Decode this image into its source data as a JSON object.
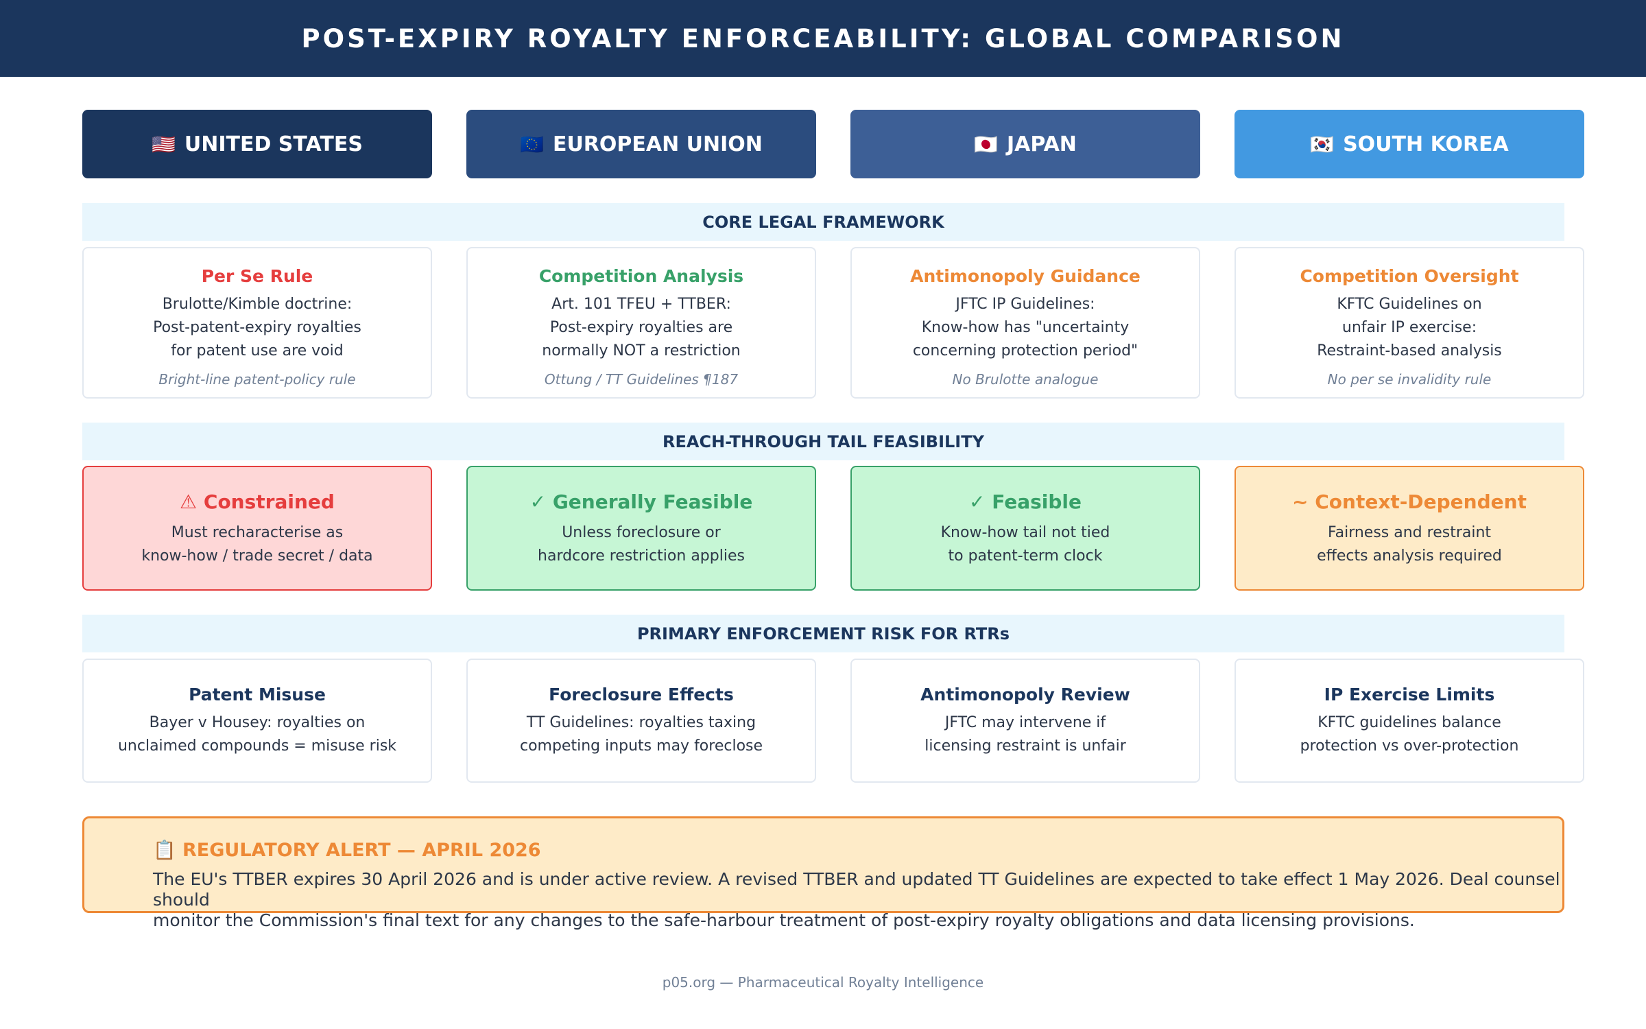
{
  "title": "POST-EXPIRY ROYALTY ENFORCEABILITY: GLOBAL COMPARISON",
  "colors": {
    "navy": "#1b365d",
    "red": "#e53e3e",
    "green": "#38a169",
    "orange": "#ed8936",
    "region_us": "#1b365d",
    "region_eu": "#2b4c7e",
    "region_jp": "#3d5f96",
    "region_kr": "#4299e1"
  },
  "regions": [
    {
      "flag": "🇺🇸",
      "name": "UNITED STATES"
    },
    {
      "flag": "🇪🇺",
      "name": "EUROPEAN UNION"
    },
    {
      "flag": "🇯🇵",
      "name": "JAPAN"
    },
    {
      "flag": "🇰🇷",
      "name": "SOUTH KOREA"
    }
  ],
  "sections": {
    "framework": "CORE LEGAL FRAMEWORK",
    "tail": "REACH-THROUGH TAIL FEASIBILITY",
    "risk": "PRIMARY ENFORCEMENT RISK FOR RTRs"
  },
  "framework": [
    {
      "title": "Per Se Rule",
      "lines": [
        "Brulotte/Kimble doctrine:",
        "Post-patent-expiry royalties",
        "for patent use are void"
      ],
      "note": "Bright-line patent-policy rule"
    },
    {
      "title": "Competition Analysis",
      "lines": [
        "Art. 101 TFEU + TTBER:",
        "Post-expiry royalties are",
        "normally NOT a restriction"
      ],
      "note": "Ottung / TT Guidelines ¶187"
    },
    {
      "title": "Antimonopoly Guidance",
      "lines": [
        "JFTC IP Guidelines:",
        "Know-how has \"uncertainty",
        "concerning protection period\""
      ],
      "note": "No Brulotte analogue"
    },
    {
      "title": "Competition Oversight",
      "lines": [
        "KFTC Guidelines on",
        "unfair IP exercise:",
        "Restraint-based analysis"
      ],
      "note": "No per se invalidity rule"
    }
  ],
  "tail": [
    {
      "title": "⚠ Constrained",
      "lines": [
        "Must recharacterise as",
        "know-how / trade secret / data"
      ]
    },
    {
      "title": "✓ Generally Feasible",
      "lines": [
        "Unless foreclosure or",
        "hardcore restriction applies"
      ]
    },
    {
      "title": "✓ Feasible",
      "lines": [
        "Know-how tail not tied",
        "to patent-term clock"
      ]
    },
    {
      "title": "~ Context-Dependent",
      "lines": [
        "Fairness and restraint",
        "effects analysis required"
      ]
    }
  ],
  "risk": [
    {
      "title": "Patent Misuse",
      "lines": [
        "Bayer v Housey: royalties on",
        "unclaimed compounds = misuse risk"
      ]
    },
    {
      "title": "Foreclosure Effects",
      "lines": [
        "TT Guidelines: royalties taxing",
        "competing inputs may foreclose"
      ]
    },
    {
      "title": "Antimonopoly Review",
      "lines": [
        "JFTC may intervene if",
        "licensing restraint is unfair"
      ]
    },
    {
      "title": "IP Exercise Limits",
      "lines": [
        "KFTC guidelines balance",
        "protection vs over-protection"
      ]
    }
  ],
  "alert": {
    "title": "📋 REGULATORY ALERT — APRIL 2026",
    "line1": "The EU's TTBER expires 30 April 2026 and is under active review. A revised TTBER and updated TT Guidelines are expected to take effect 1 May 2026. Deal counsel should",
    "line2": "monitor the Commission's final text for any changes to the safe-harbour treatment of post-expiry royalty obligations and data licensing provisions."
  },
  "footer": "p05.org — Pharmaceutical Royalty Intelligence"
}
